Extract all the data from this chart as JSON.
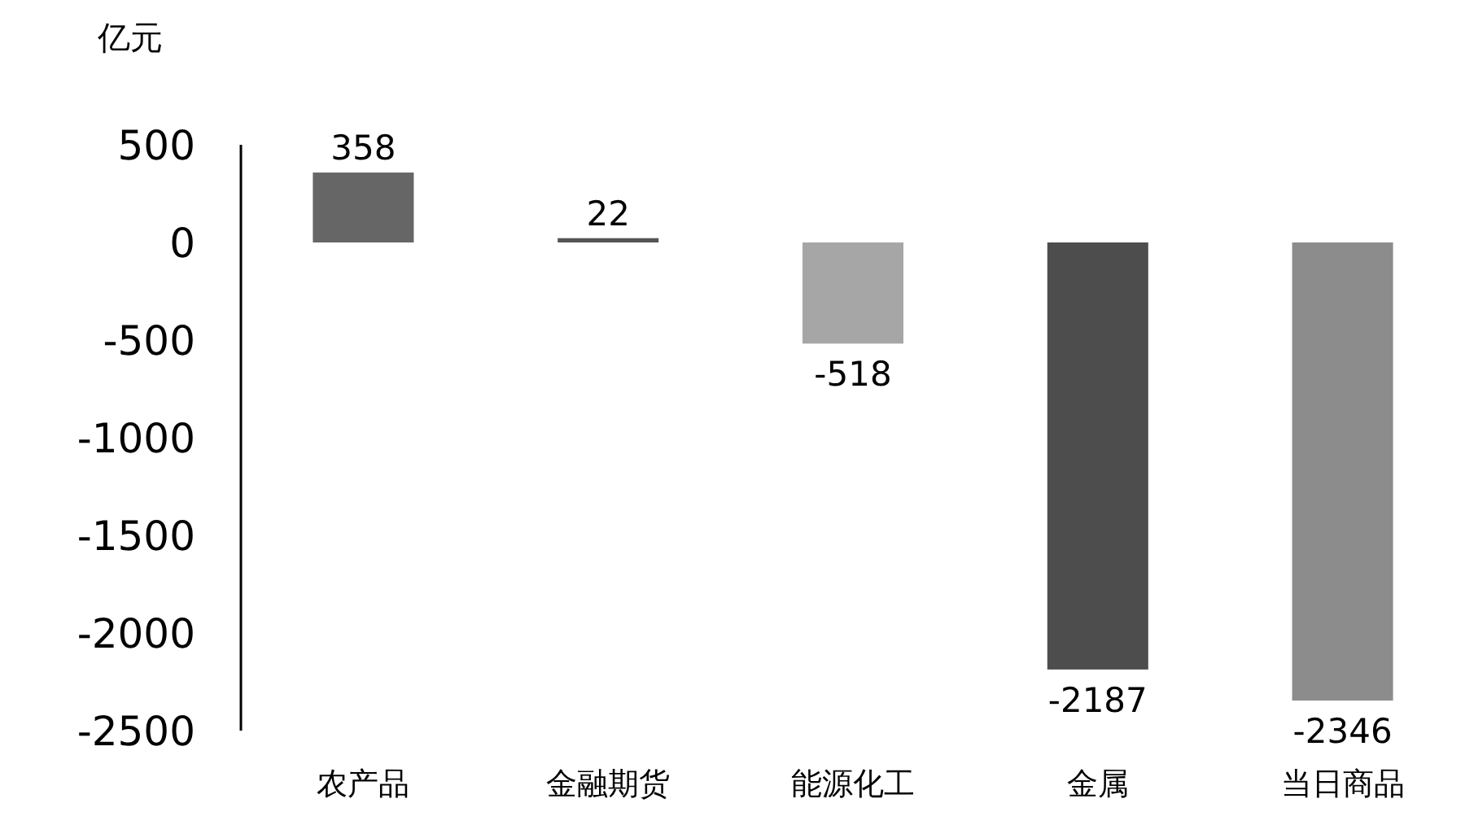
{
  "chart_data": {
    "type": "bar",
    "ylabel": "亿元",
    "categories": [
      "农产品",
      "金融期货",
      "能源化工",
      "金属",
      "当日商品"
    ],
    "values": [
      358,
      22,
      -518,
      -2187,
      -2346
    ],
    "colors": [
      "#666666",
      "#555555",
      "#a6a6a6",
      "#4d4d4d",
      "#8c8c8c"
    ],
    "ylim": [
      -2500,
      500
    ],
    "yticks": [
      -2500,
      -2000,
      -1500,
      -1000,
      -500,
      0,
      500
    ],
    "data_labels": true
  }
}
